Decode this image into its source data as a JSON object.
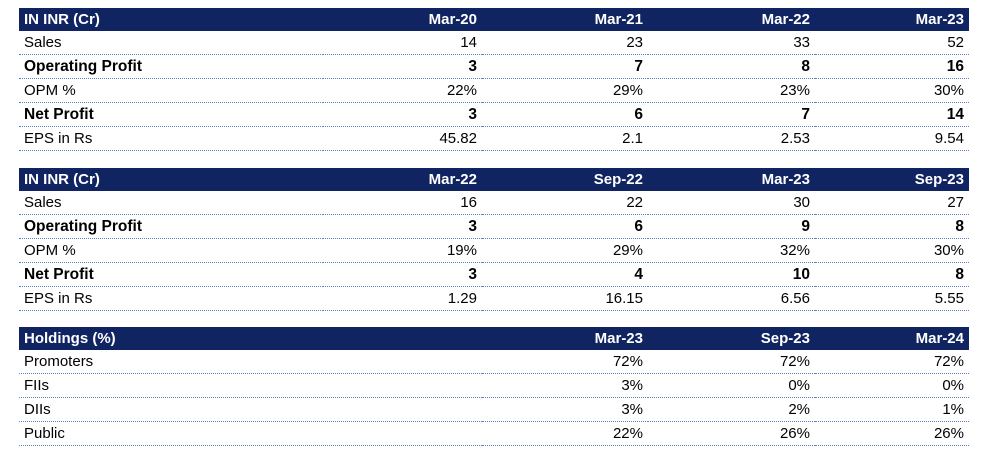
{
  "annual": {
    "header": [
      "IN INR (Cr)",
      "Mar-20",
      "Mar-21",
      "Mar-22",
      "Mar-23"
    ],
    "rows": [
      {
        "label": "Sales",
        "values": [
          "14",
          "23",
          "33",
          "52"
        ],
        "bold": false
      },
      {
        "label": "Operating Profit",
        "values": [
          "3",
          "7",
          "8",
          "16"
        ],
        "bold": true
      },
      {
        "label": "OPM %",
        "values": [
          "22%",
          "29%",
          "23%",
          "30%"
        ],
        "bold": false
      },
      {
        "label": "Net Profit",
        "values": [
          "3",
          "6",
          "7",
          "14"
        ],
        "bold": true
      },
      {
        "label": "EPS in Rs",
        "values": [
          "45.82",
          "2.1",
          "2.53",
          "9.54"
        ],
        "bold": false
      }
    ]
  },
  "halfyear": {
    "header": [
      "IN INR (Cr)",
      "Mar-22",
      "Sep-22",
      "Mar-23",
      "Sep-23"
    ],
    "rows": [
      {
        "label": "Sales",
        "values": [
          "16",
          "22",
          "30",
          "27"
        ],
        "bold": false
      },
      {
        "label": "Operating Profit",
        "values": [
          "3",
          "6",
          "9",
          "8"
        ],
        "bold": true
      },
      {
        "label": "OPM %",
        "values": [
          "19%",
          "29%",
          "32%",
          "30%"
        ],
        "bold": false
      },
      {
        "label": "Net Profit",
        "values": [
          "3",
          "4",
          "10",
          "8"
        ],
        "bold": true
      },
      {
        "label": "EPS in Rs",
        "values": [
          "1.29",
          "16.15",
          "6.56",
          "5.55"
        ],
        "bold": false
      }
    ]
  },
  "holdings": {
    "header": [
      "Holdings (%)",
      "Mar-23",
      "Sep-23",
      "Mar-24"
    ],
    "rows": [
      {
        "label": "Promoters",
        "values": [
          "72%",
          "72%",
          "72%"
        ],
        "bold": false
      },
      {
        "label": "FIIs",
        "values": [
          "3%",
          "0%",
          "0%"
        ],
        "bold": false
      },
      {
        "label": "DIIs",
        "values": [
          "3%",
          "2%",
          "1%"
        ],
        "bold": false
      },
      {
        "label": "Public",
        "values": [
          "22%",
          "26%",
          "26%"
        ],
        "bold": false
      }
    ]
  },
  "colors": {
    "header_bg": "#0f2461",
    "header_text": "#ffffff",
    "row_divider": "#5b7fc0"
  }
}
